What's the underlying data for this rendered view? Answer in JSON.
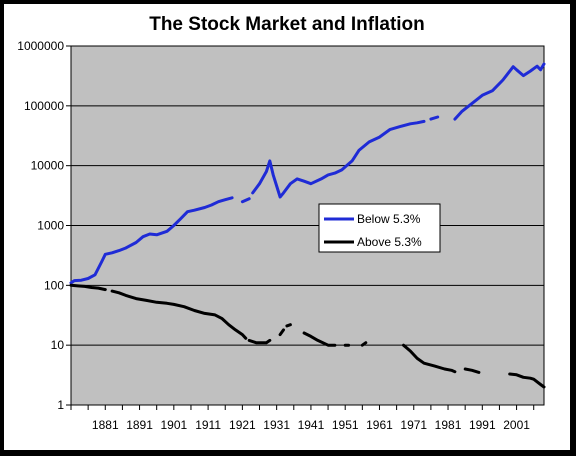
{
  "chart_data": {
    "type": "line",
    "title": "The Stock Market and Inflation",
    "xlabel": "",
    "ylabel": "",
    "y_scale": "log",
    "ylim": [
      1,
      1000000
    ],
    "xlim": [
      1871,
      2009
    ],
    "y_ticks": [
      "1",
      "10",
      "100",
      "1000",
      "10000",
      "100000",
      "1000000"
    ],
    "x_ticks": [
      "1881",
      "1891",
      "1901",
      "1911",
      "1921",
      "1931",
      "1941",
      "1951",
      "1961",
      "1971",
      "1981",
      "1991",
      "2001"
    ],
    "grid": "horizontal",
    "legend_position": "center-right",
    "plot_background": "#c0c0c0",
    "series": [
      {
        "name": "Below 5.3%",
        "color": "#1f2bd6",
        "segments": [
          [
            [
              1871,
              110
            ],
            [
              1872,
              120
            ],
            [
              1874,
              122
            ],
            [
              1876,
              130
            ],
            [
              1878,
              150
            ],
            [
              1880,
              250
            ],
            [
              1881,
              330
            ],
            [
              1883,
              350
            ],
            [
              1885,
              380
            ],
            [
              1887,
              420
            ],
            [
              1890,
              520
            ],
            [
              1892,
              650
            ],
            [
              1894,
              720
            ],
            [
              1896,
              700
            ],
            [
              1899,
              800
            ],
            [
              1901,
              1000
            ],
            [
              1903,
              1300
            ],
            [
              1905,
              1700
            ],
            [
              1907,
              1800
            ],
            [
              1910,
              2000
            ],
            [
              1912,
              2200
            ],
            [
              1914,
              2500
            ],
            [
              1916,
              2700
            ],
            [
              1918,
              2900
            ]
          ],
          [
            [
              1921,
              2500
            ],
            [
              1923,
              2800
            ]
          ],
          [
            [
              1924,
              3500
            ],
            [
              1926,
              5000
            ],
            [
              1928,
              8000
            ],
            [
              1929,
              12000
            ],
            [
              1930,
              7000
            ],
            [
              1932,
              3000
            ],
            [
              1933,
              3500
            ],
            [
              1935,
              5000
            ],
            [
              1937,
              6000
            ],
            [
              1939,
              5500
            ],
            [
              1941,
              5000
            ],
            [
              1944,
              6000
            ],
            [
              1946,
              7000
            ],
            [
              1948,
              7500
            ],
            [
              1950,
              8500
            ],
            [
              1953,
              12000
            ],
            [
              1955,
              18000
            ],
            [
              1958,
              25000
            ],
            [
              1961,
              30000
            ],
            [
              1964,
              40000
            ],
            [
              1967,
              45000
            ],
            [
              1970,
              50000
            ],
            [
              1972,
              52000
            ],
            [
              1974,
              55000
            ]
          ],
          [
            [
              1976,
              60000
            ],
            [
              1978,
              65000
            ]
          ],
          [
            [
              1983,
              60000
            ],
            [
              1985,
              80000
            ],
            [
              1988,
              110000
            ],
            [
              1991,
              150000
            ],
            [
              1994,
              180000
            ],
            [
              1997,
              270000
            ],
            [
              2000,
              450000
            ],
            [
              2001,
              400000
            ],
            [
              2003,
              320000
            ],
            [
              2005,
              380000
            ],
            [
              2007,
              460000
            ],
            [
              2008,
              400000
            ],
            [
              2009,
              500000
            ]
          ]
        ]
      },
      {
        "name": "Above 5.3%",
        "color": "#000000",
        "segments": [
          [
            [
              1871,
              100
            ],
            [
              1873,
              98
            ],
            [
              1875,
              96
            ],
            [
              1877,
              92
            ],
            [
              1879,
              90
            ],
            [
              1881,
              85
            ]
          ],
          [
            [
              1883,
              80
            ],
            [
              1885,
              75
            ],
            [
              1887,
              68
            ],
            [
              1890,
              60
            ],
            [
              1893,
              56
            ],
            [
              1896,
              52
            ],
            [
              1899,
              50
            ],
            [
              1901,
              48
            ],
            [
              1904,
              44
            ],
            [
              1907,
              38
            ],
            [
              1910,
              34
            ],
            [
              1913,
              32
            ],
            [
              1915,
              28
            ],
            [
              1917,
              22
            ],
            [
              1919,
              18
            ],
            [
              1921,
              15
            ],
            [
              1922,
              13
            ]
          ],
          [
            [
              1923,
              12
            ],
            [
              1925,
              11
            ],
            [
              1928,
              11
            ],
            [
              1929,
              12
            ]
          ],
          [
            [
              1932,
              15
            ],
            [
              1933,
              18
            ]
          ],
          [
            [
              1934,
              21
            ],
            [
              1935,
              22
            ]
          ],
          [
            [
              1939,
              16
            ],
            [
              1941,
              14
            ],
            [
              1943,
              12
            ],
            [
              1946,
              10
            ],
            [
              1948,
              10
            ]
          ],
          [
            [
              1951,
              10
            ],
            [
              1952,
              10
            ]
          ],
          [
            [
              1956,
              10
            ],
            [
              1957,
              11
            ]
          ],
          [
            [
              1968,
              10
            ],
            [
              1970,
              8
            ],
            [
              1972,
              6
            ],
            [
              1974,
              5
            ],
            [
              1977,
              4.5
            ],
            [
              1980,
              4
            ],
            [
              1982,
              3.8
            ],
            [
              1983,
              3.6
            ]
          ],
          [
            [
              1986,
              4
            ],
            [
              1988,
              3.8
            ],
            [
              1990,
              3.5
            ]
          ],
          [
            [
              1999,
              3.3
            ],
            [
              2001,
              3.2
            ],
            [
              2003,
              2.9
            ],
            [
              2005,
              2.8
            ],
            [
              2006,
              2.7
            ],
            [
              2008,
              2.2
            ],
            [
              2009,
              2.0
            ]
          ]
        ]
      }
    ]
  }
}
